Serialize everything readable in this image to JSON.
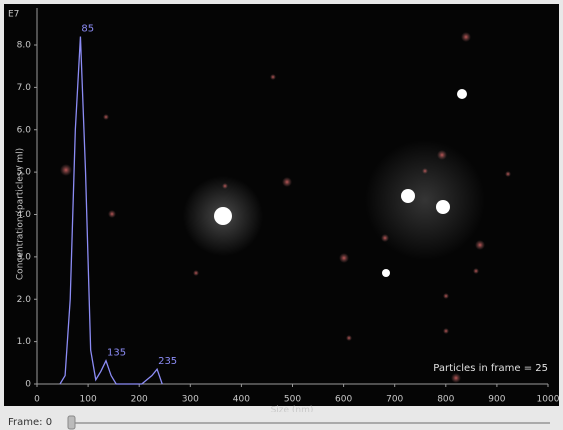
{
  "chart_data": {
    "type": "line",
    "exponent_label": "E7",
    "x_label": "Size (nm)",
    "y_label": "Concentration (particles / ml)",
    "annotation": "Particles in frame = 25",
    "x": [
      45,
      55,
      65,
      75,
      85,
      95,
      105,
      115,
      125,
      135,
      145,
      155,
      165,
      175,
      185,
      195,
      205,
      215,
      225,
      235,
      245
    ],
    "series": [
      {
        "color": "#8c8cf5",
        "values": [
          0,
          0.2,
          2.0,
          6.0,
          8.2,
          5.0,
          0.8,
          0.1,
          0.3,
          0.55,
          0.2,
          0,
          0,
          0,
          0,
          0,
          0,
          0.1,
          0.2,
          0.35,
          0
        ]
      }
    ],
    "peak_labels": [
      85,
      135,
      235
    ],
    "xlim": [
      0,
      1000
    ],
    "xticks": [
      0,
      100,
      200,
      300,
      400,
      500,
      600,
      700,
      800,
      900,
      1000
    ],
    "ylim": [
      0,
      8
    ],
    "yticks": [
      0,
      {
        "value": 1,
        "label": "1.0"
      },
      {
        "value": 2,
        "label": "2.0"
      },
      {
        "value": 3,
        "label": "3.0"
      },
      {
        "value": 4,
        "label": "4.0"
      },
      {
        "value": 5,
        "label": "5.0"
      },
      {
        "value": 6,
        "label": "6.0"
      },
      {
        "value": 7,
        "label": "7.0"
      },
      {
        "value": 8,
        "label": "8.0"
      }
    ]
  },
  "slider_label": "Frame: 0"
}
